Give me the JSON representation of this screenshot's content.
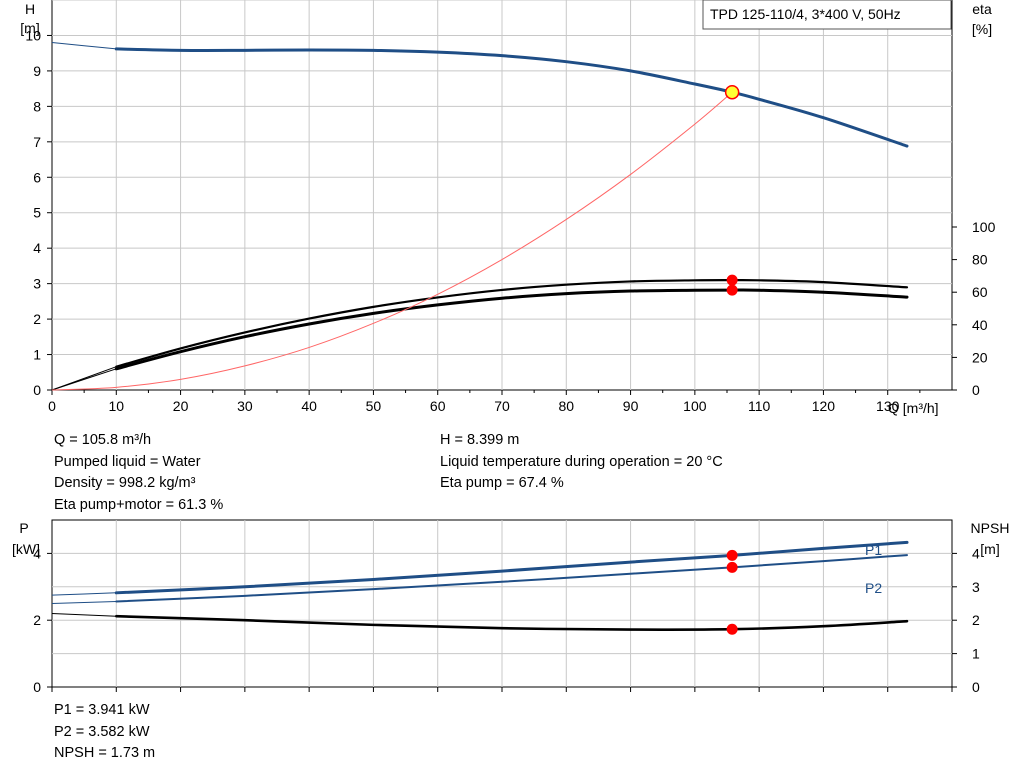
{
  "chart_data": [
    {
      "type": "line",
      "title": "TPD 125-110/4, 3*400 V, 50Hz",
      "xlabel": "Q [m³/h]",
      "ylabel_left": [
        "H",
        "[m]"
      ],
      "ylabel_right": [
        "eta",
        "[%]"
      ],
      "xlim": [
        0,
        140
      ],
      "ylim_left": [
        0,
        11
      ],
      "ylim_right": [
        0,
        100
      ],
      "x_ticks": [
        "0",
        "10",
        "20",
        "30",
        "40",
        "50",
        "60",
        "70",
        "80",
        "90",
        "100",
        "110",
        "120",
        "130"
      ],
      "y_ticks_left": [
        "0",
        "1",
        "2",
        "3",
        "4",
        "5",
        "6",
        "7",
        "8",
        "9",
        "10"
      ],
      "y_ticks_right": [
        "0",
        "20",
        "40",
        "60",
        "80",
        "100"
      ],
      "grid": true,
      "series": [
        {
          "role": "head",
          "color": "#1f4e86",
          "x": [
            0,
            10,
            20,
            30,
            40,
            50,
            60,
            70,
            80,
            90,
            100,
            105.8,
            110,
            120,
            133
          ],
          "y": [
            9.8,
            9.62,
            9.58,
            9.58,
            9.59,
            9.58,
            9.53,
            9.43,
            9.26,
            9.0,
            8.63,
            8.399,
            8.2,
            7.68,
            6.88
          ]
        },
        {
          "role": "eta-pump",
          "color": "#000000",
          "x": [
            0,
            10,
            20,
            30,
            40,
            50,
            60,
            70,
            80,
            90,
            100,
            105.8,
            110,
            120,
            133
          ],
          "y": [
            0,
            14.3,
            25.5,
            35.3,
            43.8,
            51.0,
            56.8,
            61.4,
            64.6,
            66.6,
            67.3,
            67.4,
            67.3,
            66.2,
            63.0
          ]
        },
        {
          "role": "eta-pump-motor",
          "color": "#000000",
          "x": [
            0,
            10,
            20,
            30,
            40,
            50,
            60,
            70,
            80,
            90,
            100,
            105.8,
            110,
            120,
            133
          ],
          "y": [
            0,
            13.0,
            23.5,
            32.7,
            40.5,
            47.0,
            52.2,
            56.3,
            59.1,
            60.7,
            61.2,
            61.3,
            61.2,
            60.0,
            57.0
          ]
        },
        {
          "role": "system-curve",
          "color": "#ff6666",
          "x": [
            0,
            10,
            20,
            30,
            40,
            50,
            60,
            70,
            80,
            90,
            100,
            105.8
          ],
          "y": [
            0,
            0.075,
            0.3,
            0.68,
            1.2,
            1.88,
            2.7,
            3.68,
            4.81,
            6.08,
            7.5,
            8.399
          ]
        }
      ],
      "operating_points": [
        {
          "x": 105.8,
          "y": 8.399,
          "axis": "left",
          "style": "yellow"
        },
        {
          "x": 105.8,
          "y": 67.4,
          "axis": "right",
          "style": "red"
        },
        {
          "x": 105.8,
          "y": 61.3,
          "axis": "right",
          "style": "red"
        }
      ]
    },
    {
      "type": "line",
      "ylabel_left": [
        "P",
        "[kW]"
      ],
      "ylabel_right": [
        "NPSH",
        "[m]"
      ],
      "xlim": [
        0,
        140
      ],
      "ylim_left": [
        0,
        5
      ],
      "ylim_right": [
        0,
        5
      ],
      "y_ticks_left": [
        "0",
        "2",
        "4"
      ],
      "y_ticks_right": [
        "0",
        "1",
        "2",
        "3",
        "4"
      ],
      "grid": true,
      "series": [
        {
          "name": "P1",
          "color": "#1f4e86",
          "x": [
            0,
            10,
            30,
            50,
            70,
            90,
            105.8,
            120,
            133
          ],
          "y": [
            2.75,
            2.82,
            3.0,
            3.22,
            3.47,
            3.74,
            3.941,
            4.15,
            4.33
          ]
        },
        {
          "name": "P2",
          "color": "#1f4e86",
          "x": [
            0,
            10,
            30,
            50,
            70,
            90,
            105.8,
            120,
            133
          ],
          "y": [
            2.5,
            2.56,
            2.73,
            2.93,
            3.15,
            3.39,
            3.582,
            3.77,
            3.95
          ]
        },
        {
          "role": "npsh",
          "color": "#000000",
          "x": [
            0,
            10,
            30,
            50,
            70,
            90,
            105.8,
            120,
            133
          ],
          "y": [
            2.2,
            2.12,
            2.0,
            1.86,
            1.76,
            1.72,
            1.73,
            1.82,
            1.97
          ]
        }
      ],
      "operating_points": [
        {
          "x": 105.8,
          "y": 3.941,
          "axis": "left",
          "style": "red"
        },
        {
          "x": 105.8,
          "y": 3.582,
          "axis": "left",
          "style": "red"
        },
        {
          "x": 105.8,
          "y": 1.73,
          "axis": "right",
          "style": "red"
        }
      ]
    }
  ],
  "info_top_left": [
    "Q = 105.8 m³/h",
    "Pumped liquid = Water",
    "Density = 998.2 kg/m³",
    "Eta pump+motor = 61.3 %"
  ],
  "info_top_right": [
    "H = 8.399 m",
    "Liquid temperature during operation = 20 °C",
    "Eta pump = 67.4 %"
  ],
  "info_bottom": [
    "P1 = 3.941 kW",
    "P2 = 3.582 kW",
    "NPSH = 1.73 m"
  ]
}
